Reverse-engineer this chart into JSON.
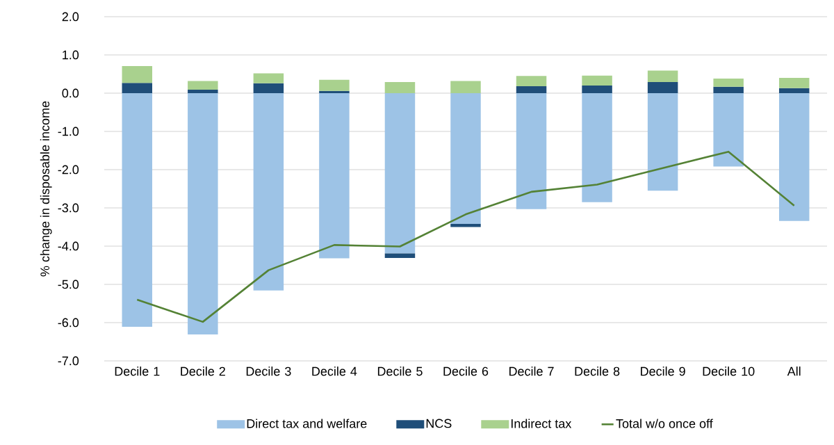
{
  "chart_data": {
    "type": "bar",
    "stacked": true,
    "ylabel": "% change in disposable income",
    "categories": [
      "Decile 1",
      "Decile 2",
      "Decile 3",
      "Decile 4",
      "Decile 5",
      "Decile 6",
      "Decile 7",
      "Decile 8",
      "Decile 9",
      "Decile 10",
      "All"
    ],
    "series": [
      {
        "name": "Direct tax and welfare",
        "color": "#9dc3e6",
        "values": [
          -6.11,
          -6.31,
          -5.16,
          -4.32,
          -4.19,
          -3.42,
          -3.03,
          -2.85,
          -2.55,
          -1.92,
          -3.34
        ]
      },
      {
        "name": "NCS",
        "color": "#1f4e79",
        "values": [
          0.27,
          0.09,
          0.26,
          0.06,
          -0.12,
          -0.08,
          0.18,
          0.2,
          0.29,
          0.17,
          0.13
        ]
      },
      {
        "name": "Indirect tax",
        "color": "#a9d18e",
        "values": [
          0.44,
          0.23,
          0.26,
          0.29,
          0.29,
          0.32,
          0.27,
          0.26,
          0.3,
          0.21,
          0.27
        ]
      },
      {
        "name": "Total w/o once off",
        "type": "line",
        "color": "#548235",
        "values": [
          -5.4,
          -5.98,
          -4.63,
          -3.97,
          -4.01,
          -3.17,
          -2.58,
          -2.39,
          -1.96,
          -1.53,
          -2.94
        ]
      }
    ],
    "ylim": [
      -7,
      2
    ],
    "yticks": [
      {
        "value": -7,
        "label": "-7.0"
      },
      {
        "value": -6,
        "label": "-6.0"
      },
      {
        "value": -5,
        "label": "-5.0"
      },
      {
        "value": -4,
        "label": "-4.0"
      },
      {
        "value": -3,
        "label": "-3.0"
      },
      {
        "value": -2,
        "label": "-2.0"
      },
      {
        "value": -1,
        "label": "-1.0"
      },
      {
        "value": 0,
        "label": "0.0"
      },
      {
        "value": 1,
        "label": "1.0"
      },
      {
        "value": 2,
        "label": "2.0"
      }
    ],
    "grid": "y",
    "legend": "bottom"
  }
}
